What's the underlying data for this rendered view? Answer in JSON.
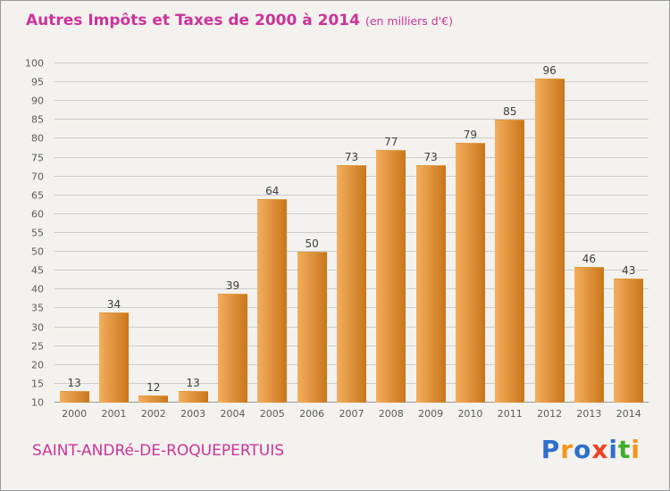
{
  "title": "Autres Impôts et Taxes de 2000 à 2014",
  "subtitle": "(en milliers d'€)",
  "footer": {
    "place": "SAINT-ANDRé-DE-ROQUEPERTUIS"
  },
  "logo": {
    "letters": [
      {
        "char": "P",
        "color": "#2e6fce"
      },
      {
        "char": "r",
        "color": "#f7941d"
      },
      {
        "char": "o",
        "color": "#2e6fce"
      },
      {
        "char": "x",
        "color": "#ef4123"
      },
      {
        "char": "i",
        "color": "#2e6fce"
      },
      {
        "char": "t",
        "color": "#3fae2a"
      },
      {
        "char": "i",
        "color": "#f7941d"
      }
    ]
  },
  "chart_data": {
    "type": "bar",
    "title": "Autres Impôts et Taxes de 2000 à 2014 (en milliers d'€)",
    "categories": [
      "2000",
      "2001",
      "2002",
      "2003",
      "2004",
      "2005",
      "2006",
      "2007",
      "2008",
      "2009",
      "2010",
      "2011",
      "2012",
      "2013",
      "2014"
    ],
    "values": [
      13,
      34,
      12,
      13,
      39,
      64,
      50,
      73,
      77,
      73,
      79,
      85,
      96,
      46,
      43
    ],
    "xlabel": "",
    "ylabel": "",
    "ylim": [
      10,
      100
    ],
    "ytick_step": 5,
    "grid": true,
    "bar_color_light": "#f4ae5e",
    "bar_color_dark": "#c9761a",
    "title_color": "#cc3399",
    "background_color": "#f3f2ee"
  }
}
